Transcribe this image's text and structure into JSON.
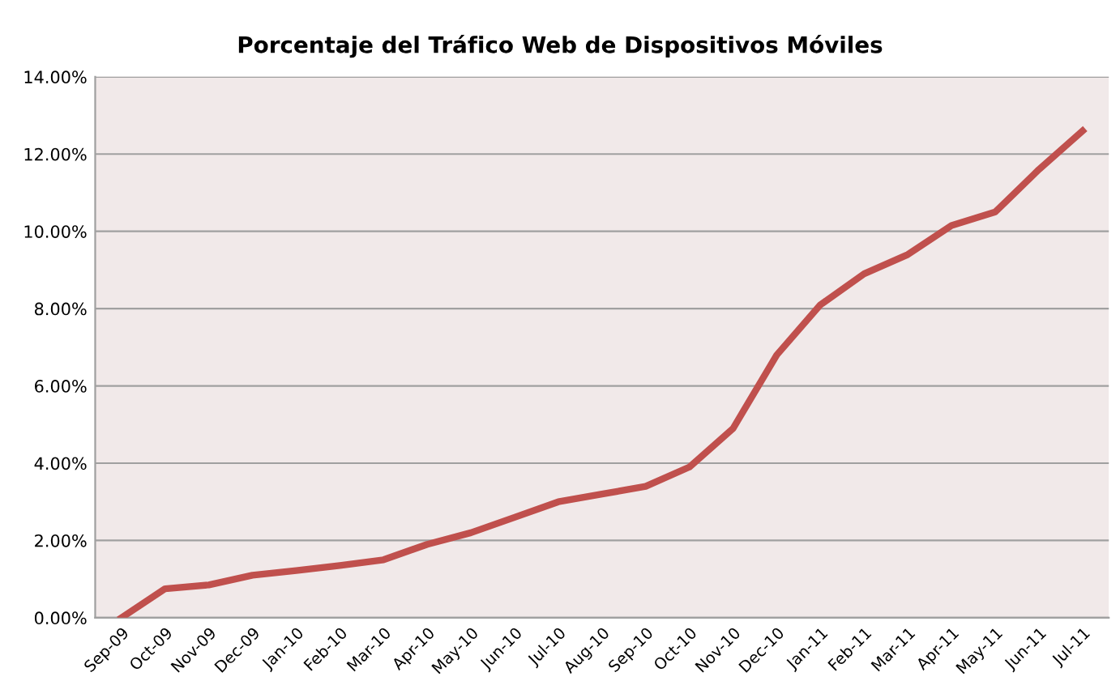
{
  "chart_data": {
    "type": "line",
    "title": "Porcentaje del Tráfico Web de Dispositivos Móviles",
    "categories": [
      "Sep-09",
      "Oct-09",
      "Nov-09",
      "Dec-09",
      "Jan-10",
      "Feb-10",
      "Mar-10",
      "Apr-10",
      "May-10",
      "Jun-10",
      "Jul-10",
      "Aug-10",
      "Sep-10",
      "Oct-10",
      "Nov-10",
      "Dec-10",
      "Jan-11",
      "Feb-11",
      "Mar-11",
      "Apr-11",
      "May-11",
      "Jun-11",
      "Jul-11"
    ],
    "series": [
      {
        "color": "#c0504d",
        "values": [
          0,
          0.75,
          0.85,
          1.1,
          1.22,
          1.35,
          1.5,
          1.9,
          2.2,
          2.6,
          3.0,
          3.2,
          3.4,
          3.9,
          4.9,
          6.8,
          8.1,
          8.9,
          9.4,
          10.15,
          10.5,
          11.6,
          12.6
        ]
      }
    ],
    "ylim": [
      0,
      14
    ],
    "yticks": [
      {
        "value": 0,
        "label": "0.00%"
      },
      {
        "value": 2,
        "label": "2.00%"
      },
      {
        "value": 4,
        "label": "4.00%"
      },
      {
        "value": 6,
        "label": "6.00%"
      },
      {
        "value": 8,
        "label": "8.00%"
      },
      {
        "value": 10,
        "label": "10.00%"
      },
      {
        "value": 12,
        "label": "12.00%"
      },
      {
        "value": 14,
        "label": "14.00%"
      }
    ],
    "grid": "y",
    "marker": "none",
    "line_style": "solid"
  }
}
